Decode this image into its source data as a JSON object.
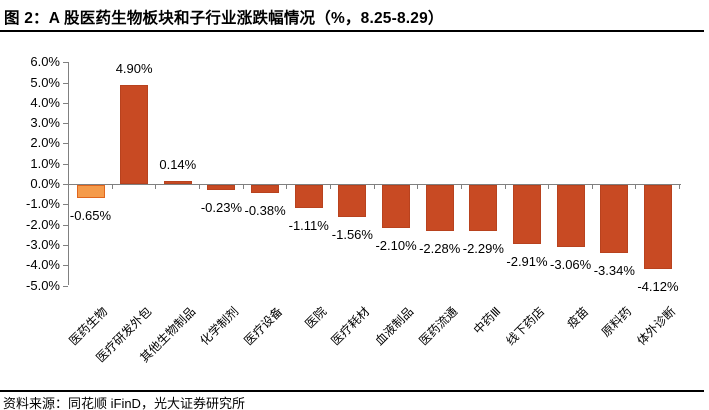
{
  "header": {
    "title": "图 2：A 股医药生物板块和子行业涨跌幅情况（%，8.25-8.29）"
  },
  "source": {
    "text": "资料来源：同花顺 iFinD，光大证券研究所"
  },
  "colors": {
    "bar_main": "#C84A23",
    "bar_main_border": "#B8421E",
    "bar_highlight": "#F59B4B",
    "bar_highlight_border": "#E0661E",
    "axis": "#808080",
    "text": "#000000",
    "rule": "#000000"
  },
  "chart_data": {
    "type": "bar",
    "title": "图 2：A 股医药生物板块和子行业涨跌幅情况（%，8.25-8.29）",
    "categories": [
      "医药生物",
      "医疗研发外包",
      "其他生物制品",
      "化学制剂",
      "医疗设备",
      "医院",
      "医疗耗材",
      "血液制品",
      "医药流通",
      "中药Ⅲ",
      "线下药店",
      "疫苗",
      "原料药",
      "体外诊断"
    ],
    "values": [
      -0.65,
      4.9,
      0.14,
      -0.23,
      -0.38,
      -1.11,
      -1.56,
      -2.1,
      -2.28,
      -2.29,
      -2.91,
      -3.06,
      -3.34,
      -4.12
    ],
    "value_labels": [
      "-0.65%",
      "4.90%",
      "0.14%",
      "-0.23%",
      "-0.38%",
      "-1.11%",
      "-1.56%",
      "-2.10%",
      "-2.28%",
      "-2.29%",
      "-2.91%",
      "-3.06%",
      "-3.34%",
      "-4.12%"
    ],
    "highlight_index": 0,
    "unit": "%",
    "y_tick_labels": [
      "6.0%",
      "5.0%",
      "4.0%",
      "3.0%",
      "2.0%",
      "1.0%",
      "0.0%",
      "-1.0%",
      "-2.0%",
      "-3.0%",
      "-4.0%",
      "-5.0%"
    ],
    "y_tick_values": [
      6,
      5,
      4,
      3,
      2,
      1,
      0,
      -1,
      -2,
      -3,
      -4,
      -5
    ],
    "ylim": [
      -5.0,
      6.0
    ],
    "grid": false,
    "legend": null,
    "xlabel": "",
    "ylabel": ""
  }
}
